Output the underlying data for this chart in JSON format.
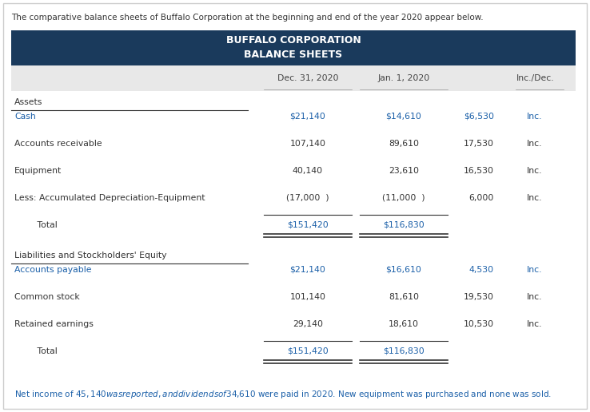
{
  "intro_text": "The comparative balance sheets of Buffalo Corporation at the beginning and end of the year 2020 appear below.",
  "title_line1": "BUFFALO CORPORATION",
  "title_line2": "BALANCE SHEETS",
  "header_bg": "#1a3a5c",
  "header_text_color": "#ffffff",
  "col_headers": [
    "Dec. 31, 2020",
    "Jan. 1, 2020",
    "Inc./Dec."
  ],
  "col_header_color": "#444444",
  "subheader_bg": "#e8e8e8",
  "section_assets": "Assets",
  "section_liabilities": "Liabilities and Stockholders' Equity",
  "rows": [
    {
      "label": "Cash",
      "dec31": "$21,140",
      "jan1": "$14,610",
      "inc": "$6,530",
      "inc_label": "Inc.",
      "dollar_sign": true,
      "is_total": false,
      "label_blue": true
    },
    {
      "label": "Accounts receivable",
      "dec31": "107,140",
      "jan1": "89,610",
      "inc": "17,530",
      "inc_label": "Inc.",
      "dollar_sign": false,
      "is_total": false,
      "label_blue": false
    },
    {
      "label": "Equipment",
      "dec31": "40,140",
      "jan1": "23,610",
      "inc": "16,530",
      "inc_label": "Inc.",
      "dollar_sign": false,
      "is_total": false,
      "label_blue": false
    },
    {
      "label": "Less: Accumulated Depreciation-Equipment",
      "dec31": "(17,000  )",
      "jan1": "(11,000  )",
      "inc": "6,000",
      "inc_label": "Inc.",
      "dollar_sign": false,
      "is_total": false,
      "label_blue": false
    },
    {
      "label": "Total",
      "dec31": "$151,420",
      "jan1": "$116,830",
      "inc": "",
      "inc_label": "",
      "dollar_sign": true,
      "is_total": true,
      "label_blue": false
    }
  ],
  "rows2": [
    {
      "label": "Accounts payable",
      "dec31": "$21,140",
      "jan1": "$16,610",
      "inc": "4,530",
      "inc_label": "Inc.",
      "dollar_sign": true,
      "is_total": false,
      "label_blue": true
    },
    {
      "label": "Common stock",
      "dec31": "101,140",
      "jan1": "81,610",
      "inc": "19,530",
      "inc_label": "Inc.",
      "dollar_sign": false,
      "is_total": false,
      "label_blue": false
    },
    {
      "label": "Retained earnings",
      "dec31": "29,140",
      "jan1": "18,610",
      "inc": "10,530",
      "inc_label": "Inc.",
      "dollar_sign": false,
      "is_total": false,
      "label_blue": false
    },
    {
      "label": "Total",
      "dec31": "$151,420",
      "jan1": "$116,830",
      "inc": "",
      "inc_label": "",
      "dollar_sign": true,
      "is_total": true,
      "label_blue": false
    }
  ],
  "footer_text": "Net income of $45,140 was reported, and dividends of $34,610 were paid in 2020. New equipment was purchased and none was sold.",
  "footer_color": "#1a5fa8",
  "outer_border_color": "#cccccc",
  "bg_color": "#ffffff",
  "label_color_normal": "#333333",
  "value_color_blue": "#1a5fa8",
  "inc_color": "#333333",
  "line_color": "#333333"
}
